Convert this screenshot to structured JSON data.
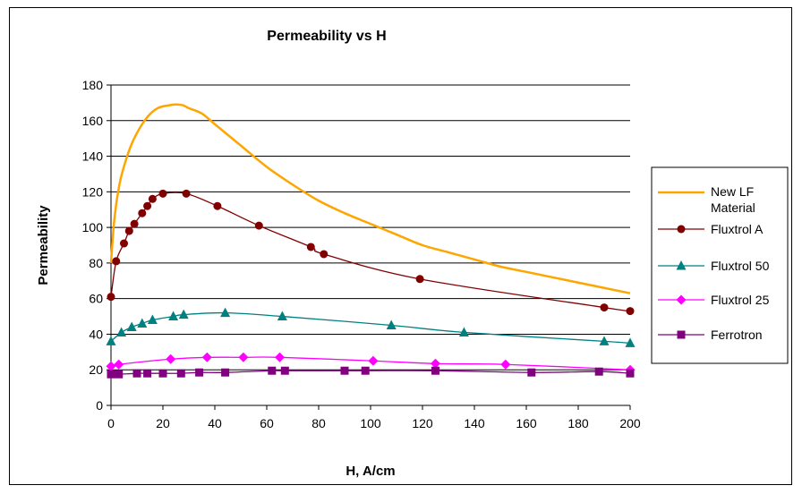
{
  "chart_data": {
    "type": "line",
    "title": "Permeability vs H",
    "xlabel": "H, A/cm",
    "ylabel": "Permeability",
    "xlim": [
      0,
      200
    ],
    "ylim": [
      0,
      180
    ],
    "xticks": [
      0,
      20,
      40,
      60,
      80,
      100,
      120,
      140,
      160,
      180,
      200
    ],
    "yticks": [
      0,
      20,
      40,
      60,
      80,
      100,
      120,
      140,
      160,
      180
    ],
    "grid": "horizontal",
    "legend_position": "right",
    "series": [
      {
        "name": "New LF Material",
        "color": "#ffa500",
        "marker": "none",
        "x": [
          0,
          1,
          2,
          3,
          4,
          6,
          8,
          10,
          12,
          14,
          16,
          18,
          20,
          22,
          24,
          26,
          28,
          30,
          35,
          40,
          50,
          60,
          70,
          80,
          90,
          100,
          110,
          120,
          130,
          140,
          150,
          160,
          170,
          180,
          190,
          200
        ],
        "y": [
          80,
          100,
          113,
          122,
          129,
          139,
          147,
          153,
          158,
          162,
          165,
          167,
          168,
          168.5,
          169,
          169,
          168.5,
          167,
          164,
          158,
          146,
          134,
          124,
          115,
          108,
          102,
          96,
          90,
          86,
          82,
          78,
          75,
          72,
          69,
          66,
          63
        ]
      },
      {
        "name": "Fluxtrol A",
        "color": "#800000",
        "marker": "circle",
        "x": [
          0,
          2,
          5,
          7,
          9,
          12,
          14,
          16,
          20,
          29,
          41,
          57,
          77,
          82,
          119,
          190,
          200
        ],
        "y": [
          61,
          81,
          91,
          98,
          102,
          108,
          112,
          116,
          119,
          119,
          112,
          101,
          89,
          85,
          71,
          55,
          53
        ]
      },
      {
        "name": "Fluxtrol 50",
        "color": "#008080",
        "marker": "triangle",
        "x": [
          0,
          4,
          8,
          12,
          16,
          24,
          28,
          44,
          66,
          108,
          136,
          190,
          200
        ],
        "y": [
          36,
          41,
          44,
          46,
          48,
          50,
          51,
          52,
          50,
          45,
          41,
          36,
          35
        ]
      },
      {
        "name": "Fluxtrol 25",
        "color": "#ff00ff",
        "marker": "diamond",
        "x": [
          0,
          3,
          23,
          37,
          51,
          65,
          101,
          125,
          152,
          200
        ],
        "y": [
          22,
          23,
          26,
          27,
          27,
          27,
          25,
          23.5,
          23,
          20
        ]
      },
      {
        "name": "Ferrotron",
        "color": "#800080",
        "marker": "square",
        "x": [
          0,
          3,
          10,
          14,
          20,
          27,
          34,
          44,
          62,
          67,
          90,
          98,
          125,
          162,
          188,
          200
        ],
        "y": [
          17.5,
          17.5,
          18,
          18,
          18,
          18,
          18.5,
          18.5,
          19.5,
          19.5,
          19.5,
          19.5,
          19.5,
          18.5,
          19,
          18
        ]
      }
    ]
  }
}
